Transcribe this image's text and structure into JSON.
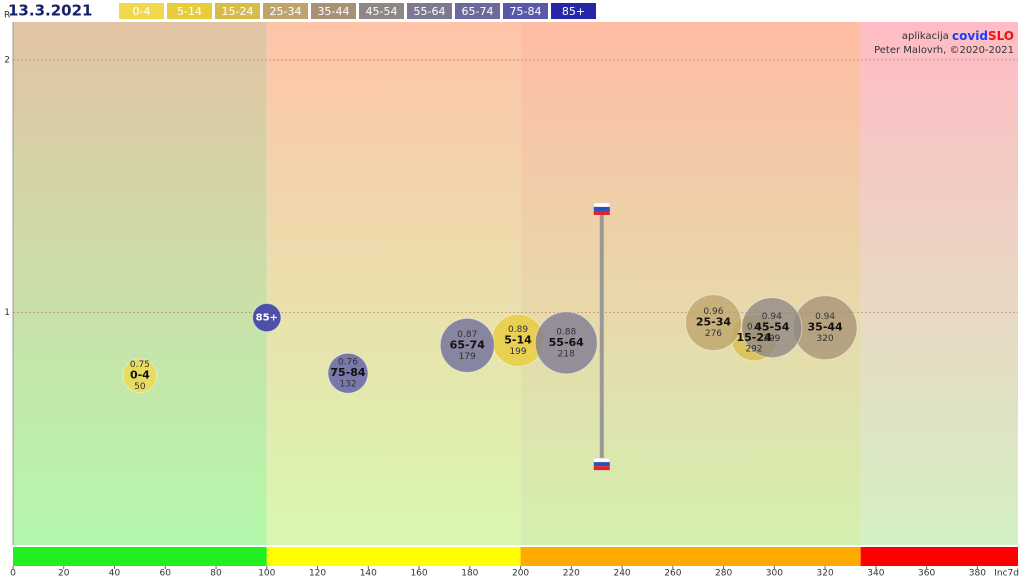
{
  "chart_data": {
    "type": "bubble",
    "date": "13.3.2021",
    "xlabel": "Inc7d",
    "ylabel": "R",
    "app_prefix": "aplikacija",
    "app_name_1": "covid",
    "app_name_2": "SLO",
    "credit": "Peter Malovrh, ©2020-2021",
    "xlim": [
      0,
      396
    ],
    "ylim": [
      0.08,
      2.15
    ],
    "xticks": [
      0,
      20,
      40,
      60,
      80,
      100,
      120,
      140,
      160,
      180,
      200,
      220,
      240,
      260,
      280,
      300,
      320,
      340,
      360,
      380
    ],
    "yticks": [
      1,
      2
    ],
    "grid": true,
    "zones": [
      {
        "from": 0,
        "to": 100,
        "top_color": "#e2c4a4",
        "bottom_color": "#b4f8ac",
        "bar_color": "#22ee22"
      },
      {
        "from": 100,
        "to": 200,
        "top_color": "#ffc4a8",
        "bottom_color": "#d8f8b0",
        "bar_color": "#ffff00"
      },
      {
        "from": 200,
        "to": 334,
        "top_color": "#ffbca4",
        "bottom_color": "#d4f0b0",
        "bar_color": "#ffaa00"
      },
      {
        "from": 334,
        "to": 396,
        "top_color": "#ffbcc4",
        "bottom_color": "#d4f0c4",
        "bar_color": "#ff0000"
      }
    ],
    "slovenia": {
      "x": 232,
      "high": 1.41,
      "low": 0.4
    },
    "series": [
      {
        "name": "0-4",
        "color": "#f2d84c",
        "x": 50,
        "y": 0.75,
        "size": 29,
        "show_labels": true
      },
      {
        "name": "5-14",
        "color": "#e8cc38",
        "x": 199,
        "y": 0.89,
        "size": 68,
        "show_labels": true
      },
      {
        "name": "15-24",
        "color": "#d8bc48",
        "x": 292,
        "y": 0.9,
        "size": 53,
        "show_labels": true
      },
      {
        "name": "25-34",
        "color": "#bea46c",
        "x": 276,
        "y": 0.96,
        "size": 78,
        "show_labels": true
      },
      {
        "name": "35-44",
        "color": "#a89274",
        "x": 320,
        "y": 0.94,
        "size": 102,
        "show_labels": true
      },
      {
        "name": "45-54",
        "color": "#908684",
        "x": 299,
        "y": 0.94,
        "size": 90,
        "show_labels": true
      },
      {
        "name": "55-64",
        "color": "#7e7892",
        "x": 218,
        "y": 0.88,
        "size": 96,
        "show_labels": true
      },
      {
        "name": "65-74",
        "color": "#6c6a9c",
        "x": 179,
        "y": 0.87,
        "size": 73,
        "show_labels": true
      },
      {
        "name": "75-84",
        "color": "#5a58a8",
        "x": 132,
        "y": 0.76,
        "size": 40,
        "show_labels": true
      },
      {
        "name": "85+",
        "color": "#2626a8",
        "x": 100,
        "y": 0.98,
        "size": 20,
        "show_labels": false
      }
    ]
  }
}
